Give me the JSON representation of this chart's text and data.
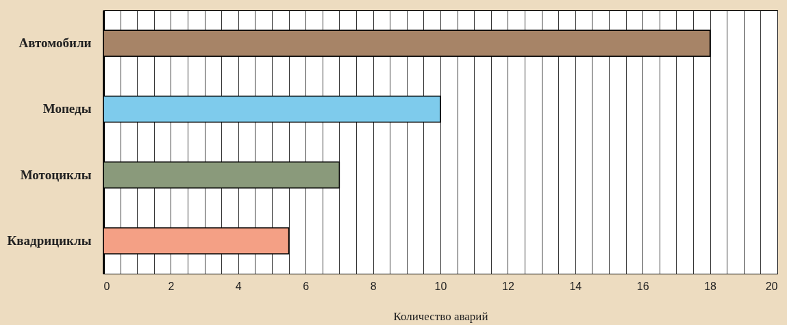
{
  "chart_data": {
    "type": "bar",
    "orientation": "horizontal",
    "xlabel": "Количество аварий",
    "categories": [
      "Автомобили",
      "Мопеды",
      "Мотоциклы",
      "Квадрициклы"
    ],
    "values": [
      18,
      10,
      7,
      5.5
    ],
    "colors": [
      "#a78467",
      "#7ecbec",
      "#8a9a7b",
      "#f4a085"
    ],
    "xlim": [
      0,
      20
    ],
    "xticks": [
      0,
      {
        "value": 0.5,
        "label": null
      },
      {
        "value": 1,
        "label": null
      },
      {
        "value": 1.5,
        "label": null
      },
      2,
      {
        "value": 2.5,
        "label": null
      },
      {
        "value": 3,
        "label": null
      },
      {
        "value": 3.5,
        "label": null
      },
      4,
      {
        "value": 4.5,
        "label": null
      },
      {
        "value": 5,
        "label": null
      },
      {
        "value": 5.5,
        "label": null
      },
      6,
      {
        "value": 6.5,
        "label": null
      },
      {
        "value": 7,
        "label": null
      },
      {
        "value": 7.5,
        "label": null
      },
      8,
      {
        "value": 8.5,
        "label": null
      },
      {
        "value": 9,
        "label": null
      },
      {
        "value": 9.5,
        "label": null
      },
      10,
      {
        "value": 10.5,
        "label": null
      },
      {
        "value": 11,
        "label": null
      },
      {
        "value": 11.5,
        "label": null
      },
      12,
      {
        "value": 12.5,
        "label": null
      },
      {
        "value": 13,
        "label": null
      },
      {
        "value": 13.5,
        "label": null
      },
      14,
      {
        "value": 14.5,
        "label": null
      },
      {
        "value": 15,
        "label": null
      },
      {
        "value": 15.5,
        "label": null
      },
      16,
      {
        "value": 16.5,
        "label": null
      },
      {
        "value": 17,
        "label": null
      },
      {
        "value": 17.5,
        "label": null
      },
      18,
      {
        "value": 18.5,
        "label": null
      },
      {
        "value": 19,
        "label": null
      },
      {
        "value": 19.5,
        "label": null
      },
      20
    ],
    "grid": "x"
  }
}
